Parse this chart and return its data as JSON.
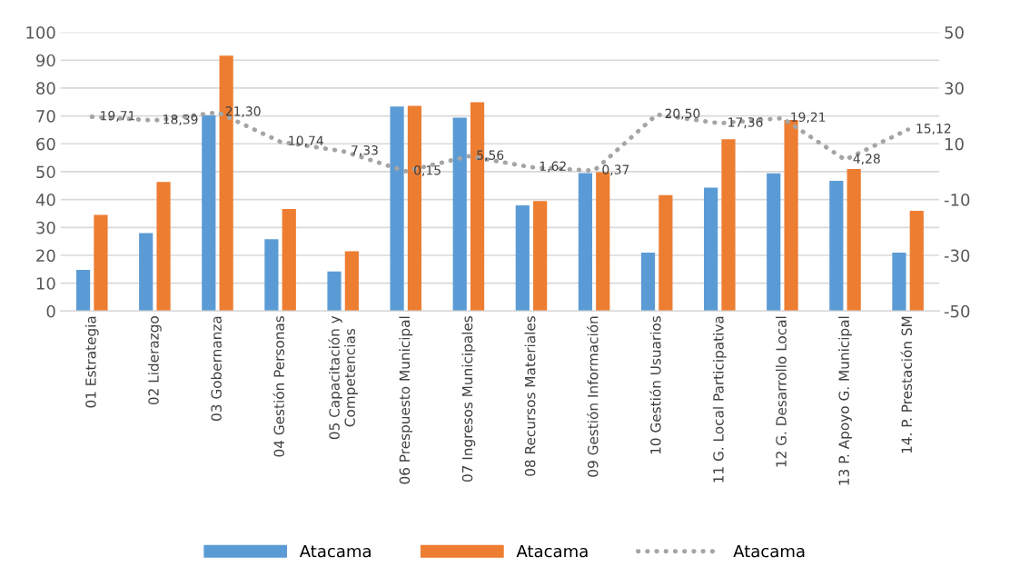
{
  "chart_data": {
    "type": "bar",
    "categories": [
      "01 Estrategia",
      "02 Liderazgo",
      "03 Gobernanza",
      "04 Gestión Personas",
      "05 Capacitación y\nCompetencias",
      "06 Prespuesto Municipal",
      "07 Ingresos Municipales",
      "08 Recursos Materiales",
      "09 Gestión Información",
      "10 Gestión Usuarios",
      "11 G. Local Participativa",
      "12 G. Desarrollo Local",
      "13 P. Apoyo G. Municipal",
      "14. P. Prestación SM"
    ],
    "series": [
      {
        "name": "Atacama",
        "color": "#5b9bd5",
        "values": [
          14.8,
          28,
          70.3,
          25.8,
          14.2,
          73.4,
          69.4,
          37.9,
          49.5,
          21,
          44.3,
          49.4,
          46.7,
          21
        ]
      },
      {
        "name": "Atacama",
        "color": "#ed7d31",
        "values": [
          34.5,
          46.3,
          91.6,
          36.6,
          21.5,
          73.6,
          74.9,
          39.5,
          49.8,
          41.6,
          61.6,
          68.6,
          51,
          36
        ]
      },
      {
        "name": "Atacama",
        "color": "#a5a5a5",
        "type": "line",
        "axis": "y2",
        "line_style": "dotted",
        "values": [
          19.71,
          18.39,
          21.3,
          10.74,
          7.33,
          0.15,
          5.56,
          1.62,
          0.37,
          20.5,
          17.36,
          19.21,
          4.28,
          15.12
        ],
        "value_labels": [
          "19,71",
          "18,39",
          "21,30",
          "10,74",
          "7,33",
          "0,15",
          "5,56",
          "1,62",
          "0,37",
          "20,50",
          "17,36",
          "19,21",
          "4,28",
          "15,12"
        ]
      }
    ],
    "ylim": [
      0,
      100
    ],
    "yticks": [
      0,
      10,
      20,
      30,
      40,
      50,
      60,
      70,
      80,
      90,
      100
    ],
    "y2lim": [
      -50,
      50
    ],
    "y2ticks": [
      -50,
      -30,
      -10,
      10,
      30,
      50
    ],
    "grid": "y",
    "legend": "bottom"
  }
}
